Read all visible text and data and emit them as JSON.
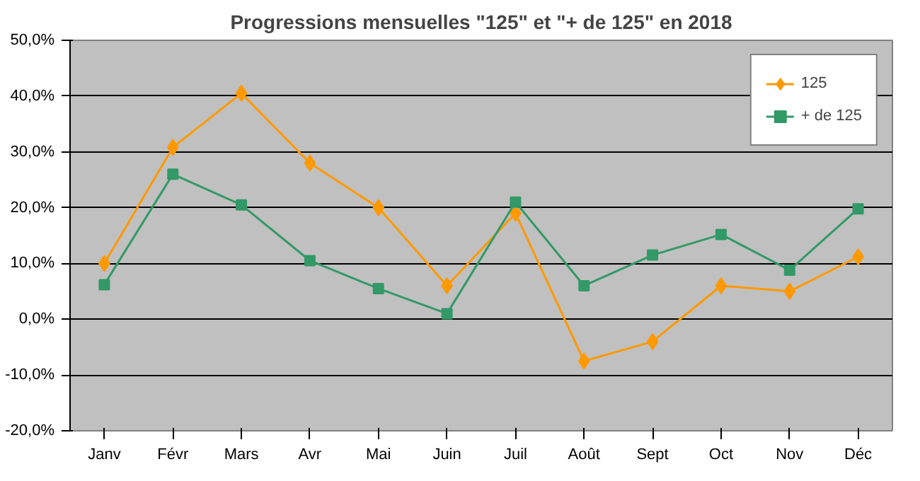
{
  "chart_data": {
    "type": "line",
    "title": "Progressions mensuelles \"125\" et \"+ de 125\" en 2018",
    "categories": [
      "Janv",
      "Févr",
      "Mars",
      "Avr",
      "Mai",
      "Juin",
      "Juil",
      "Août",
      "Sept",
      "Oct",
      "Nov",
      "Déc"
    ],
    "series": [
      {
        "name": "125",
        "color": "#ff9900",
        "marker": "diamond",
        "values": [
          10.0,
          30.8,
          40.5,
          28.0,
          20.0,
          6.0,
          19.0,
          -7.5,
          -4.0,
          6.0,
          5.0,
          11.2
        ]
      },
      {
        "name": "+ de 125",
        "color": "#339966",
        "marker": "square",
        "values": [
          6.2,
          26.0,
          20.5,
          10.5,
          5.5,
          1.0,
          21.0,
          6.0,
          11.5,
          15.2,
          8.8,
          19.8
        ]
      }
    ],
    "ylim": [
      -20,
      50
    ],
    "yticks": [
      {
        "value": -20,
        "label": "-20,0%"
      },
      {
        "value": -10,
        "label": "-10,0%"
      },
      {
        "value": 0,
        "label": "0,0%"
      },
      {
        "value": 10,
        "label": "10,0%"
      },
      {
        "value": 20,
        "label": "20,0%"
      },
      {
        "value": 30,
        "label": "30,0%"
      },
      {
        "value": 40,
        "label": "40,0%"
      },
      {
        "value": 50,
        "label": "50,0%"
      }
    ],
    "grid": "y",
    "legend": "top right"
  }
}
